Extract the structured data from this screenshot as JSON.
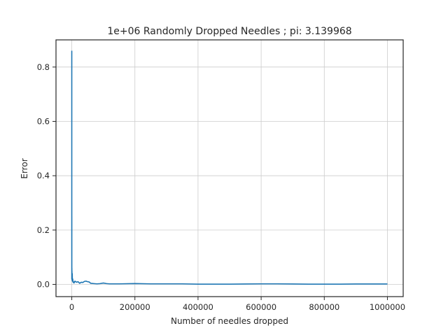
{
  "chart_data": {
    "type": "line",
    "title": "1e+06 Randomly Dropped Needles ; pi: 3.139968",
    "xlabel": "Number of needles dropped",
    "ylabel": "Error",
    "xlim": [
      -50000,
      1050000
    ],
    "ylim": [
      -0.045,
      0.9
    ],
    "xticks": [
      0,
      200000,
      400000,
      600000,
      800000,
      1000000
    ],
    "xtick_labels": [
      "0",
      "200000",
      "400000",
      "600000",
      "800000",
      "1000000"
    ],
    "yticks": [
      0.0,
      0.2,
      0.4,
      0.6,
      0.8
    ],
    "ytick_labels": [
      "0.0",
      "0.2",
      "0.4",
      "0.6",
      "0.8"
    ],
    "grid": true,
    "legend": "none",
    "line_color": "#1f77b4",
    "series": [
      {
        "x": [
          1,
          10,
          20,
          30,
          50,
          70,
          100,
          150,
          200,
          300,
          400,
          500,
          700,
          1000,
          1500,
          2000,
          3000,
          4000,
          5000,
          7000,
          10000,
          15000,
          20000,
          25000,
          30000,
          35000,
          40000,
          45000,
          50000,
          55000,
          60000,
          70000,
          80000,
          90000,
          100000,
          110000,
          120000,
          150000,
          200000,
          250000,
          300000,
          350000,
          400000,
          450000,
          500000,
          550000,
          600000,
          650000,
          700000,
          750000,
          800000,
          850000,
          900000,
          950000,
          1000000
        ],
        "y": [
          0.86,
          0.1,
          0.6,
          0.05,
          0.3,
          0.02,
          0.25,
          0.09,
          0.04,
          0.06,
          0.03,
          0.05,
          0.02,
          0.015,
          0.04,
          0.012,
          0.02,
          0.008,
          0.01,
          0.005,
          0.012,
          0.008,
          0.01,
          0.004,
          0.008,
          0.007,
          0.011,
          0.012,
          0.01,
          0.009,
          0.004,
          0.003,
          0.002,
          0.003,
          0.005,
          0.003,
          0.002,
          0.002,
          0.003,
          0.002,
          0.002,
          0.002,
          0.001,
          0.001,
          0.001,
          0.0015,
          0.002,
          0.002,
          0.0015,
          0.001,
          0.001,
          0.001,
          0.0015,
          0.0015,
          0.0016
        ]
      }
    ]
  }
}
